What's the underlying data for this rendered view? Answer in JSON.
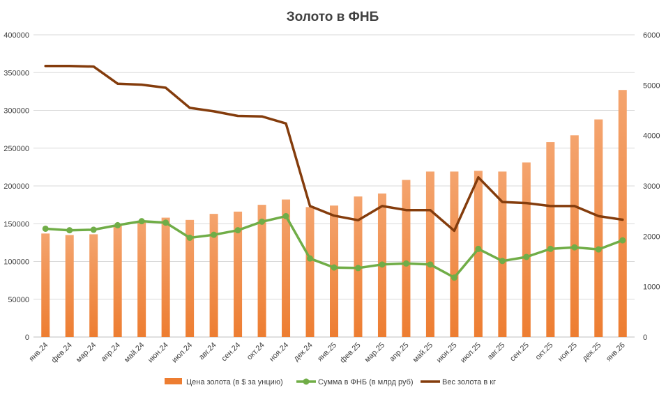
{
  "chart_data": {
    "type": "bar+line",
    "title": "Золото в ФНБ",
    "categories": [
      "янв.24",
      "фев.24",
      "мар.24",
      "апр.24",
      "май.24",
      "июн.24",
      "июл.24",
      "авг.24",
      "сен.24",
      "окт.24",
      "ноя.24",
      "дек.24",
      "янв.25",
      "фев.25",
      "мар.25",
      "апр.25",
      "май.25",
      "июн.25",
      "июл.25",
      "авг.25",
      "сен.25",
      "окт.25",
      "ноя.25",
      "дек.25",
      "янв.26"
    ],
    "left_axis": {
      "ylim": [
        0,
        400000
      ],
      "ticks": [
        "0",
        "50000",
        "100000",
        "150000",
        "200000",
        "250000",
        "300000",
        "350000",
        "400000"
      ]
    },
    "right_axis": {
      "ylim": [
        0,
        6000
      ],
      "ticks": [
        "0",
        "1000",
        "2000",
        "3000",
        "4000",
        "5000",
        "6000"
      ]
    },
    "series": [
      {
        "name": "Цена золота (в $ за унцию)",
        "type": "bar",
        "axis": "left",
        "color": "#ED7D31",
        "values": [
          137000,
          135000,
          136000,
          148000,
          152000,
          158000,
          155000,
          163000,
          166000,
          175000,
          182000,
          172000,
          174000,
          186000,
          190000,
          208000,
          219000,
          219000,
          220000,
          219000,
          231000,
          258000,
          267000,
          288000,
          327000
        ]
      },
      {
        "name": "Сумма в ФНБ (в млрд руб)",
        "type": "line",
        "axis": "right",
        "color": "#70AD47",
        "values": [
          2150,
          2120,
          2130,
          2220,
          2300,
          2270,
          1970,
          2030,
          2120,
          2290,
          2400,
          1560,
          1380,
          1370,
          1440,
          1460,
          1440,
          1180,
          1750,
          1510,
          1590,
          1750,
          1780,
          1740,
          1920
        ]
      },
      {
        "name": "Вес золота в кг",
        "type": "line",
        "axis": "right",
        "color": "#843C0C",
        "values": [
          5380,
          5380,
          5370,
          5030,
          5010,
          4950,
          4550,
          4480,
          4390,
          4380,
          4240,
          2600,
          2410,
          2320,
          2600,
          2520,
          2520,
          2110,
          3170,
          2680,
          2660,
          2600,
          2600,
          2400,
          2330
        ]
      }
    ]
  }
}
